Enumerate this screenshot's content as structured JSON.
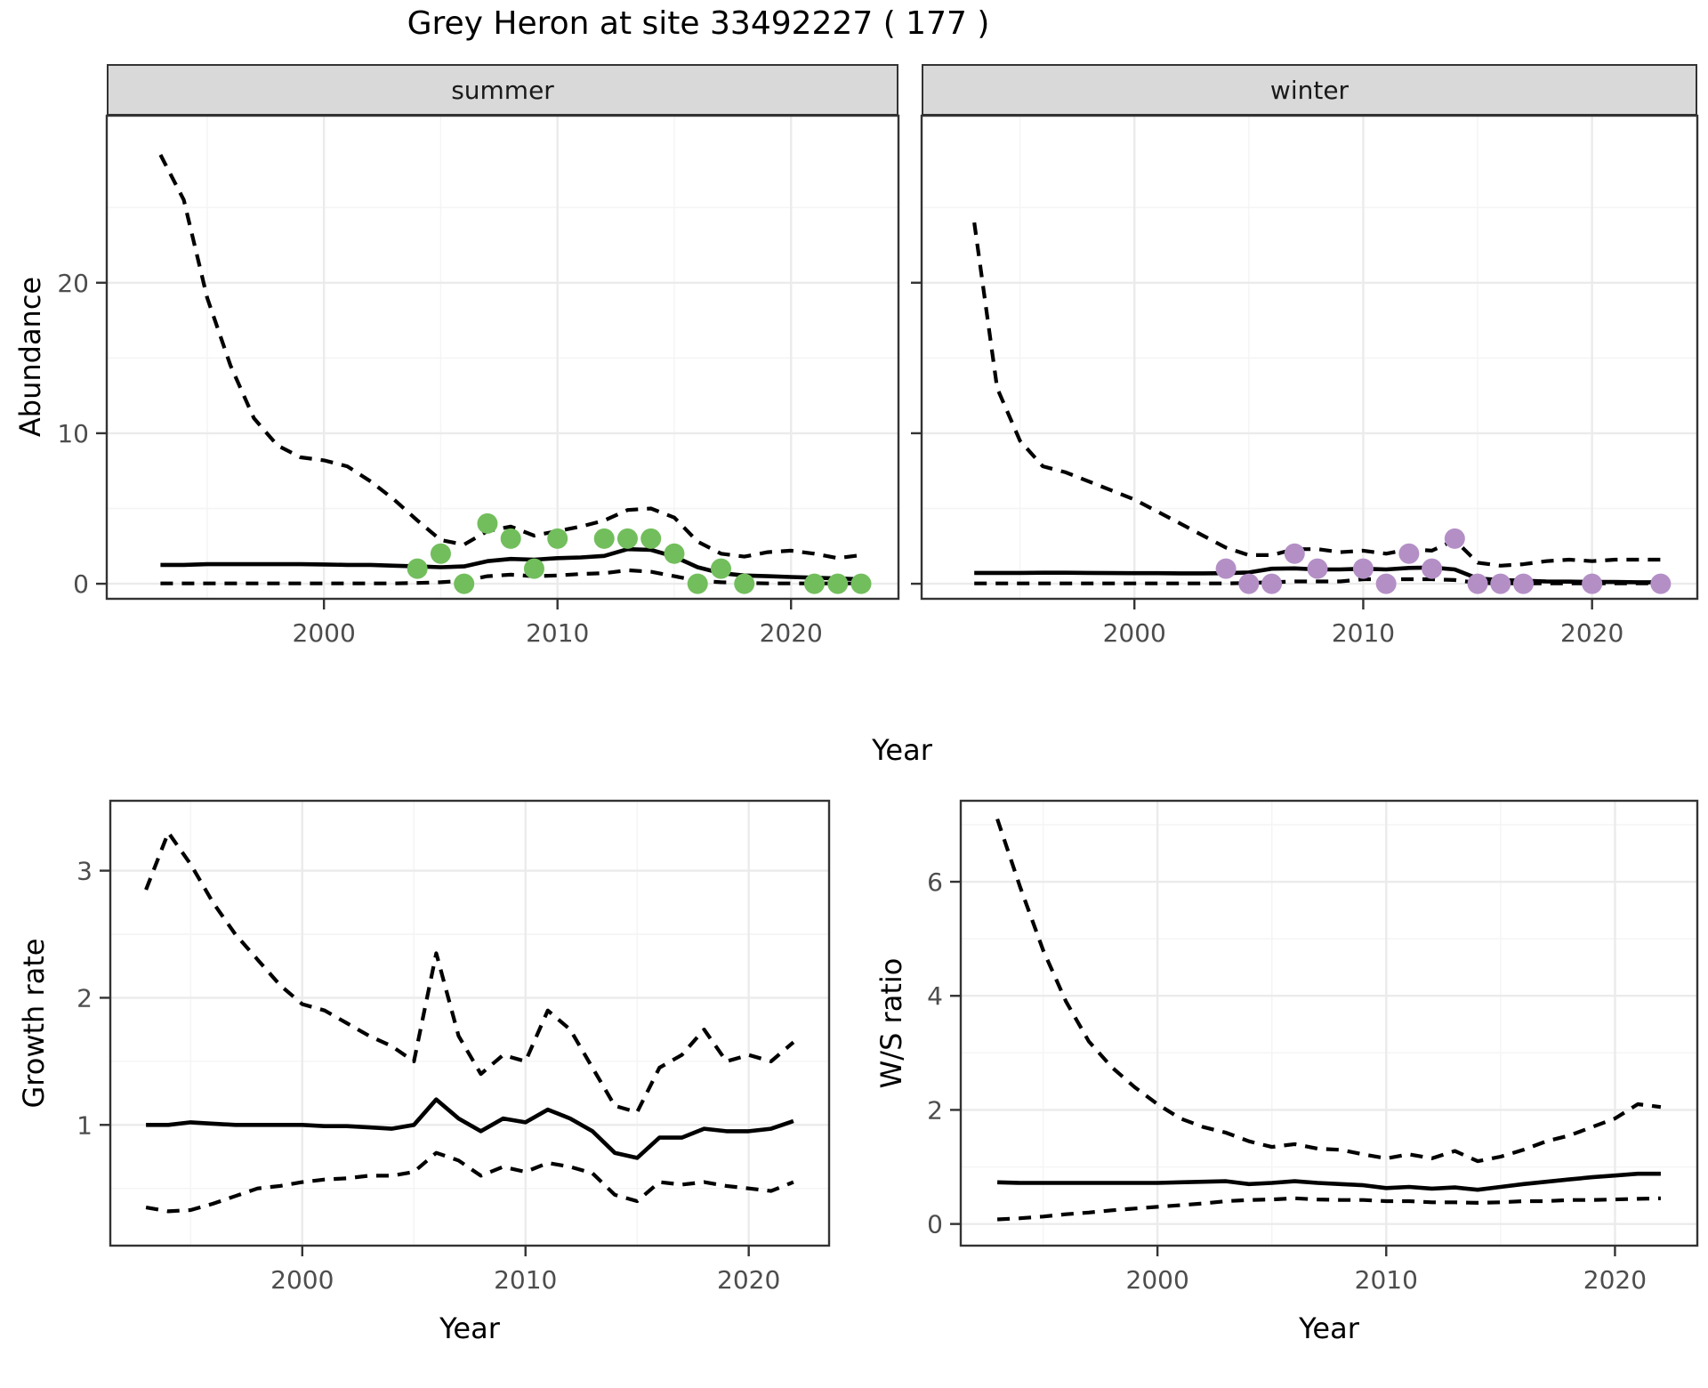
{
  "title": "Grey Heron at site 33492227 ( 177 )",
  "facets": [
    {
      "label": "summer"
    },
    {
      "label": "winter"
    }
  ],
  "axes": {
    "abundance_y": "Abundance",
    "top_x": "Year",
    "growth_y": "Growth rate",
    "growth_x": "Year",
    "ws_y": "W/S ratio",
    "ws_x": "Year"
  },
  "colors": {
    "point_summer": "#72BE5C",
    "point_winter": "#B48FC6",
    "line": "#000000",
    "strip_bg": "#D9D9D9",
    "grid_major": "#EBEBEB",
    "grid_minor": "#F4F4F4",
    "axis_text": "#4D4D4D",
    "panel_border": "#333333",
    "background": "#FFFFFF"
  },
  "chart_data": [
    {
      "id": "abundance-summer",
      "type": "line",
      "facet": "summer",
      "ylabel": "Abundance",
      "xlabel": "Year",
      "xlim": [
        1990.7,
        2024.6
      ],
      "ylim": [
        -1.0,
        31.1
      ],
      "xticks": [
        2000,
        2010,
        2020
      ],
      "xminor": [
        1995,
        2005,
        2015
      ],
      "yticks": [
        0,
        10,
        20
      ],
      "yminor": [
        5,
        15,
        25
      ],
      "year_start": 1993,
      "series": [
        {
          "name": "upper-ci",
          "style": "dashed",
          "values": [
            28.5,
            25.5,
            19.0,
            14.5,
            11.0,
            9.2,
            8.4,
            8.2,
            7.8,
            6.8,
            5.6,
            4.2,
            2.9,
            2.6,
            3.5,
            3.8,
            3.2,
            3.5,
            3.8,
            4.2,
            4.9,
            5.0,
            4.4,
            2.8,
            2.0,
            1.8,
            2.1,
            2.2,
            2.0,
            1.7,
            1.9
          ]
        },
        {
          "name": "fit",
          "style": "solid",
          "values": [
            1.25,
            1.25,
            1.3,
            1.3,
            1.3,
            1.3,
            1.3,
            1.28,
            1.25,
            1.25,
            1.2,
            1.15,
            1.1,
            1.15,
            1.5,
            1.65,
            1.6,
            1.7,
            1.75,
            1.85,
            2.3,
            2.25,
            1.8,
            1.1,
            0.7,
            0.55,
            0.5,
            0.45,
            0.4,
            0.35,
            0.3
          ]
        },
        {
          "name": "lower-ci",
          "style": "dashed",
          "values": [
            0.02,
            0.02,
            0.02,
            0.02,
            0.02,
            0.02,
            0.02,
            0.02,
            0.02,
            0.02,
            0.02,
            0.05,
            0.1,
            0.2,
            0.5,
            0.6,
            0.5,
            0.55,
            0.65,
            0.7,
            0.9,
            0.8,
            0.5,
            0.2,
            0.1,
            0.05,
            0.02,
            0.02,
            0.02,
            0.02,
            0.02
          ]
        }
      ],
      "points": {
        "color_key": "point_summer",
        "years": [
          2004,
          2005,
          2006,
          2007,
          2008,
          2009,
          2010,
          2012,
          2013,
          2014,
          2015,
          2016,
          2017,
          2018,
          2021,
          2022,
          2023
        ],
        "values": [
          1,
          2,
          0,
          4,
          3,
          1,
          3,
          3,
          3,
          3,
          2,
          0,
          1,
          0,
          0,
          0,
          0
        ]
      }
    },
    {
      "id": "abundance-winter",
      "type": "line",
      "facet": "winter",
      "ylabel": "Abundance",
      "xlabel": "Year",
      "xlim": [
        1990.7,
        2024.6
      ],
      "ylim": [
        -1.0,
        31.1
      ],
      "xticks": [
        2000,
        2010,
        2020
      ],
      "xminor": [
        1995,
        2005,
        2015
      ],
      "yticks": [
        0,
        10,
        20
      ],
      "yminor": [
        5,
        15,
        25
      ],
      "year_start": 1993,
      "series": [
        {
          "name": "upper-ci",
          "style": "dashed",
          "values": [
            24.0,
            13.0,
            9.5,
            7.8,
            7.4,
            6.8,
            6.2,
            5.6,
            4.8,
            4.0,
            3.2,
            2.4,
            1.9,
            1.9,
            2.3,
            2.3,
            2.1,
            2.2,
            2.0,
            2.3,
            2.2,
            2.9,
            1.4,
            1.2,
            1.3,
            1.5,
            1.6,
            1.5,
            1.6,
            1.6,
            1.6
          ]
        },
        {
          "name": "fit",
          "style": "solid",
          "values": [
            0.72,
            0.72,
            0.72,
            0.73,
            0.73,
            0.72,
            0.71,
            0.7,
            0.7,
            0.69,
            0.69,
            0.7,
            0.75,
            1.0,
            1.02,
            0.95,
            0.95,
            1.0,
            0.95,
            1.05,
            1.08,
            0.95,
            0.35,
            0.25,
            0.2,
            0.15,
            0.14,
            0.12,
            0.12,
            0.1,
            0.1
          ]
        },
        {
          "name": "lower-ci",
          "style": "dashed",
          "values": [
            0.02,
            0.02,
            0.02,
            0.02,
            0.02,
            0.02,
            0.02,
            0.02,
            0.02,
            0.02,
            0.02,
            0.02,
            0.05,
            0.1,
            0.15,
            0.15,
            0.15,
            0.3,
            0.3,
            0.3,
            0.3,
            0.25,
            0.05,
            0.02,
            0.02,
            0.02,
            0.02,
            0.02,
            0.02,
            0.02,
            0.02
          ]
        }
      ],
      "points": {
        "color_key": "point_winter",
        "years": [
          2004,
          2005,
          2006,
          2007,
          2008,
          2010,
          2011,
          2012,
          2013,
          2014,
          2015,
          2016,
          2017,
          2020,
          2023
        ],
        "values": [
          1,
          0,
          0,
          2,
          1,
          1,
          0,
          2,
          1,
          3,
          0,
          0,
          0,
          0,
          0
        ]
      }
    },
    {
      "id": "growth",
      "type": "line",
      "facet": null,
      "ylabel": "Growth rate",
      "xlabel": "Year",
      "xlim": [
        1991.4,
        2023.6
      ],
      "ylim": [
        0.05,
        3.55
      ],
      "xticks": [
        2000,
        2010,
        2020
      ],
      "xminor": [
        1995,
        2005,
        2015
      ],
      "yticks": [
        1,
        2,
        3
      ],
      "yminor": [
        0.5,
        1.5,
        2.5
      ],
      "year_start": 1993,
      "series": [
        {
          "name": "upper-ci",
          "style": "dashed",
          "values": [
            2.85,
            3.3,
            3.05,
            2.75,
            2.5,
            2.3,
            2.1,
            1.95,
            1.9,
            1.8,
            1.7,
            1.62,
            1.5,
            2.35,
            1.7,
            1.4,
            1.55,
            1.5,
            1.9,
            1.75,
            1.45,
            1.15,
            1.1,
            1.45,
            1.55,
            1.75,
            1.5,
            1.55,
            1.5,
            1.65
          ]
        },
        {
          "name": "fit",
          "style": "solid",
          "values": [
            1.0,
            1.0,
            1.02,
            1.01,
            1.0,
            1.0,
            1.0,
            1.0,
            0.99,
            0.99,
            0.98,
            0.97,
            1.0,
            1.2,
            1.05,
            0.95,
            1.05,
            1.02,
            1.12,
            1.05,
            0.95,
            0.78,
            0.74,
            0.9,
            0.9,
            0.97,
            0.95,
            0.95,
            0.97,
            1.03
          ]
        },
        {
          "name": "lower-ci",
          "style": "dashed",
          "values": [
            0.35,
            0.32,
            0.33,
            0.38,
            0.44,
            0.5,
            0.52,
            0.55,
            0.57,
            0.58,
            0.6,
            0.6,
            0.63,
            0.78,
            0.72,
            0.6,
            0.67,
            0.63,
            0.7,
            0.67,
            0.62,
            0.45,
            0.4,
            0.55,
            0.53,
            0.55,
            0.52,
            0.5,
            0.48,
            0.55
          ]
        }
      ],
      "points": null
    },
    {
      "id": "ws",
      "type": "line",
      "facet": null,
      "ylabel": "W/S ratio",
      "xlabel": "Year",
      "xlim": [
        1991.4,
        2023.6
      ],
      "ylim": [
        -0.38,
        7.42
      ],
      "xticks": [
        2000,
        2010,
        2020
      ],
      "xminor": [
        1995,
        2005,
        2015
      ],
      "yticks": [
        0,
        2,
        4,
        6
      ],
      "yminor": [
        1,
        3,
        5,
        7
      ],
      "year_start": 1993,
      "series": [
        {
          "name": "upper-ci",
          "style": "dashed",
          "values": [
            7.1,
            5.9,
            4.8,
            3.9,
            3.2,
            2.75,
            2.4,
            2.1,
            1.85,
            1.7,
            1.6,
            1.45,
            1.35,
            1.4,
            1.32,
            1.3,
            1.22,
            1.15,
            1.22,
            1.15,
            1.28,
            1.1,
            1.18,
            1.3,
            1.45,
            1.55,
            1.7,
            1.85,
            2.1,
            2.05
          ]
        },
        {
          "name": "fit",
          "style": "solid",
          "values": [
            0.73,
            0.72,
            0.72,
            0.72,
            0.72,
            0.72,
            0.72,
            0.72,
            0.73,
            0.74,
            0.75,
            0.7,
            0.72,
            0.75,
            0.72,
            0.7,
            0.68,
            0.63,
            0.65,
            0.62,
            0.64,
            0.6,
            0.65,
            0.7,
            0.74,
            0.78,
            0.82,
            0.85,
            0.88,
            0.88
          ]
        },
        {
          "name": "lower-ci",
          "style": "dashed",
          "values": [
            0.08,
            0.1,
            0.13,
            0.17,
            0.2,
            0.24,
            0.27,
            0.3,
            0.33,
            0.36,
            0.4,
            0.42,
            0.43,
            0.45,
            0.43,
            0.42,
            0.42,
            0.4,
            0.4,
            0.38,
            0.38,
            0.37,
            0.38,
            0.4,
            0.4,
            0.42,
            0.42,
            0.43,
            0.44,
            0.45
          ]
        }
      ],
      "points": null
    }
  ]
}
